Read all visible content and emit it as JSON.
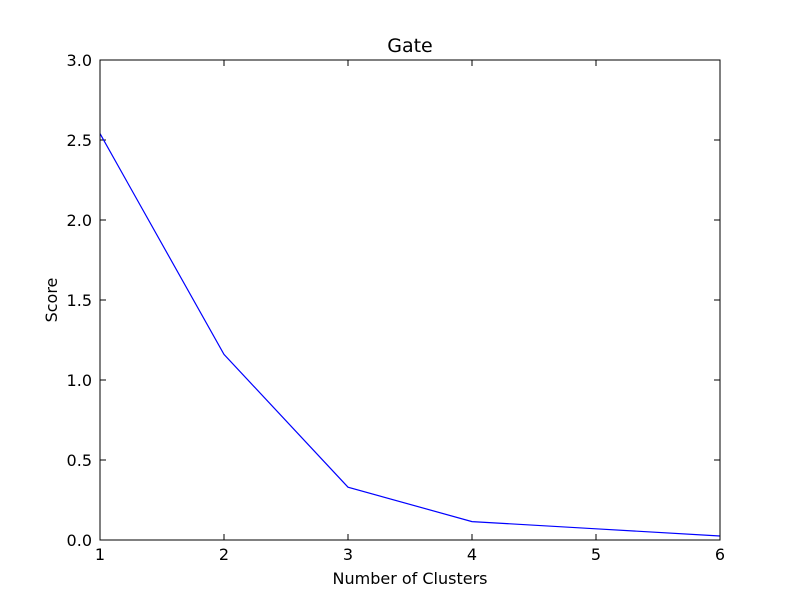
{
  "chart_data": {
    "type": "line",
    "title": "Gate",
    "xlabel": "Number of Clusters",
    "ylabel": "Score",
    "xlim": [
      1,
      6
    ],
    "ylim": [
      0,
      3.0
    ],
    "x_ticks": [
      1,
      2,
      3,
      4,
      5,
      6
    ],
    "x_tick_labels": [
      "1",
      "2",
      "3",
      "4",
      "5",
      "6"
    ],
    "y_ticks": [
      0,
      0.5,
      1.0,
      1.5,
      2.0,
      2.5,
      3.0
    ],
    "y_tick_labels": [
      "0.0",
      "0.5",
      "1.0",
      "1.5",
      "2.0",
      "2.5",
      "3.0"
    ],
    "grid": false,
    "legend": "none",
    "series": [
      {
        "color": "#0000ff",
        "x": [
          1,
          2,
          3,
          4,
          5,
          6
        ],
        "y": [
          2.54,
          1.16,
          0.33,
          0.115,
          0.07,
          0.025
        ]
      }
    ]
  }
}
